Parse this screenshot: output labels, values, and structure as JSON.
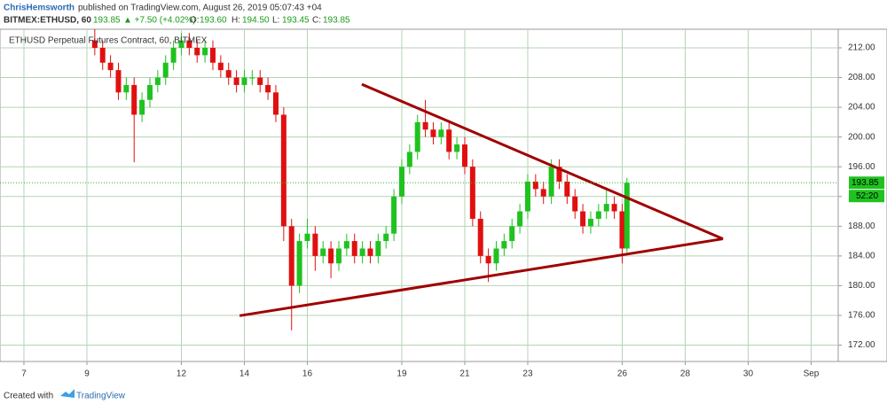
{
  "header": {
    "author": "ChrisHemsworth",
    "published": "published on TradingView.com, August 26, 2019 05:07:43 +04",
    "symbol": "BITMEX:ETHUSD, 60",
    "price": "193.85",
    "change": "▲ +7.50 (+4.02%)",
    "open_label": "O:",
    "open": "193.60",
    "high_label": "H:",
    "high": "194.50",
    "low_label": "L:",
    "low": "193.45",
    "close_label": "C:",
    "close": "193.85"
  },
  "chart_data": {
    "type": "candlestick",
    "title": "ETHUSD Perpetual Futures Contract, 60, BITMEX",
    "up_color": "#1fc21f",
    "down_color": "#e01010",
    "grid": true,
    "xlim": [
      6.24,
      32.86
    ],
    "ylim": [
      169.8,
      214.5
    ],
    "xticks": [
      7,
      9,
      12,
      14,
      16,
      19,
      21,
      23,
      26,
      28,
      30,
      {
        "value": 32,
        "label": "Sep"
      }
    ],
    "yticks": [
      {
        "value": 172,
        "label": "172.00"
      },
      {
        "value": 176,
        "label": "176.00"
      },
      {
        "value": 180,
        "label": "180.00"
      },
      {
        "value": 184,
        "label": "184.00"
      },
      {
        "value": 188,
        "label": "188.00"
      },
      {
        "value": 192,
        "label": "192.00"
      },
      {
        "value": 196,
        "label": "196.00"
      },
      {
        "value": 200,
        "label": "200.00"
      },
      {
        "value": 204,
        "label": "204.00"
      },
      {
        "value": 208,
        "label": "208.00"
      },
      {
        "value": 212,
        "label": "212.00"
      }
    ],
    "x": [
      9.25,
      9.5,
      9.75,
      10,
      10.25,
      10.5,
      10.75,
      11,
      11.25,
      11.5,
      11.75,
      12,
      12.25,
      12.5,
      12.75,
      13,
      13.25,
      13.5,
      13.75,
      14,
      14.25,
      14.5,
      14.75,
      15,
      15.25,
      15.5,
      15.75,
      16,
      16.25,
      16.5,
      16.75,
      17,
      17.25,
      17.5,
      17.75,
      18,
      18.25,
      18.5,
      18.75,
      19,
      19.25,
      19.5,
      19.75,
      20,
      20.25,
      20.5,
      20.75,
      21,
      21.25,
      21.5,
      21.75,
      22,
      22.25,
      22.5,
      22.75,
      23,
      23.25,
      23.5,
      23.75,
      24,
      24.25,
      24.5,
      24.75,
      25,
      25.25,
      25.5,
      25.75,
      26,
      26.15
    ],
    "open": [
      213,
      212,
      210,
      209,
      206,
      207,
      203,
      205,
      207,
      208,
      210,
      212,
      213,
      212,
      211,
      212,
      210,
      209,
      208,
      207,
      208,
      208,
      207,
      206,
      203,
      188,
      180,
      186,
      187,
      184,
      185,
      183,
      185,
      186,
      184,
      185,
      184,
      186,
      187,
      192,
      196,
      198,
      202,
      201,
      200,
      201,
      198,
      199,
      196,
      189,
      184,
      183,
      185,
      186,
      188,
      190,
      194,
      193,
      192,
      196,
      194,
      192,
      190,
      188,
      189,
      190,
      191,
      190,
      185
    ],
    "high": [
      214.5,
      213,
      211,
      210,
      208,
      208,
      206,
      208,
      209,
      211,
      213,
      214,
      214,
      213,
      213,
      213,
      211,
      210,
      209,
      209,
      209,
      209,
      208,
      207,
      204,
      189,
      187,
      189,
      188,
      186,
      186,
      186,
      187,
      187,
      186,
      186,
      187,
      188,
      193,
      197,
      199,
      203,
      205,
      202,
      202,
      202,
      200,
      200,
      197,
      190,
      185,
      186,
      187,
      189,
      191,
      195,
      195,
      194,
      197,
      197,
      195,
      193,
      191,
      190,
      191,
      193,
      192,
      191,
      194.5
    ],
    "low": [
      211,
      209,
      208,
      205,
      205,
      196.6,
      202,
      204,
      206,
      207,
      209,
      211,
      211,
      210,
      210,
      209,
      208,
      207,
      206,
      206,
      207,
      206,
      205,
      202,
      186,
      174,
      179,
      185,
      182,
      183,
      181,
      182,
      184,
      183,
      183,
      183,
      183,
      185,
      186,
      191,
      195,
      197,
      200,
      199,
      199,
      197,
      197,
      195,
      188,
      183,
      180.5,
      182,
      184,
      185,
      187,
      189,
      192,
      191,
      191,
      193,
      191,
      189,
      187,
      187,
      188,
      189,
      189,
      183,
      184.5
    ],
    "close": [
      212,
      210,
      209,
      206,
      207,
      203,
      205,
      207,
      208,
      210,
      212,
      213,
      212,
      211,
      212,
      210,
      209,
      208,
      207,
      208,
      208,
      207,
      206,
      203,
      188,
      180,
      186,
      187,
      184,
      185,
      183,
      185,
      186,
      184,
      185,
      184,
      186,
      187,
      192,
      196,
      198,
      202,
      201,
      200,
      201,
      198,
      199,
      196,
      189,
      184,
      183,
      185,
      186,
      188,
      190,
      194,
      193,
      192,
      196,
      194,
      192,
      190,
      188,
      189,
      190,
      191,
      190,
      185,
      193.85
    ],
    "last_price": 193.85,
    "countdown": "52:20",
    "trendlines": [
      {
        "x": [
          17.73,
          29.2
        ],
        "y": [
          207.1,
          186.3
        ]
      },
      {
        "x": [
          13.85,
          29.2
        ],
        "y": [
          175.96,
          186.3
        ]
      }
    ],
    "trendline_color": "#a00000"
  },
  "footer": {
    "created": "Created with",
    "brand": "TradingView"
  }
}
